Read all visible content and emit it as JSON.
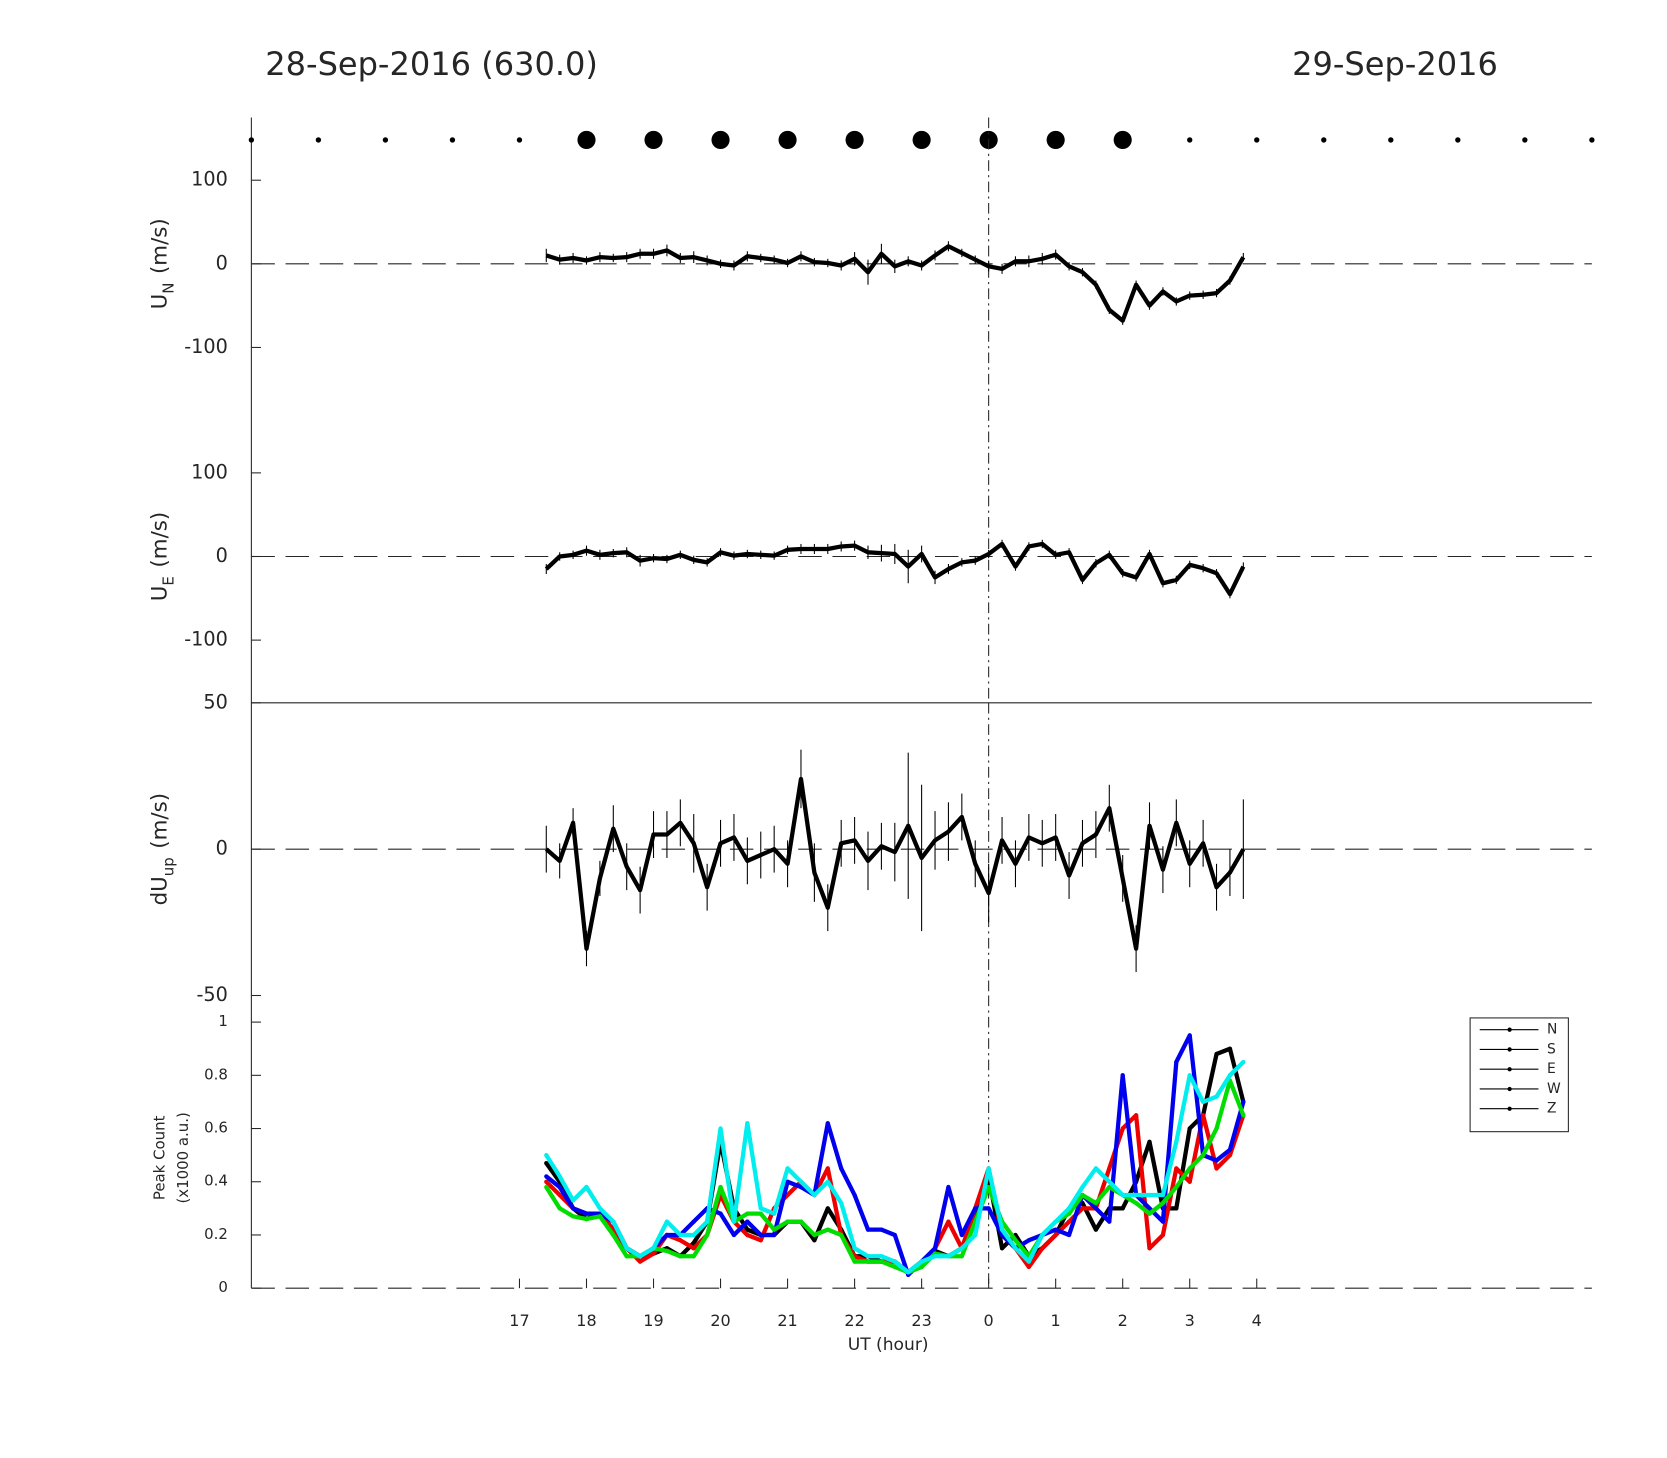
{
  "header": {
    "left": "28-Sep-2016 (630.0)",
    "right": "29-Sep-2016"
  },
  "chart_data": [
    {
      "type": "dots",
      "xlim": [
        13,
        33
      ],
      "color": "#000000",
      "x": [
        13,
        14,
        15,
        16,
        17,
        18,
        19,
        20,
        21,
        22,
        23,
        24,
        25,
        26,
        27,
        28,
        29,
        30,
        31,
        32,
        33
      ],
      "sizes": [
        2.5,
        2.5,
        2.5,
        2.5,
        2.5,
        8.5,
        8.5,
        8.5,
        8.5,
        8.5,
        8.5,
        8.5,
        8.5,
        8.5,
        2.5,
        2.5,
        2.5,
        2.5,
        2.5,
        2.5,
        2.5
      ]
    },
    {
      "type": "line",
      "xlim": [
        13,
        33
      ],
      "ylim": [
        -175,
        175
      ],
      "yticks": [
        -100,
        0,
        100
      ],
      "hline": 0,
      "vline": 24,
      "ylabel": {
        "text": "U",
        "sub": "N",
        "unit": "(m/s)"
      },
      "color": "#000000",
      "x": [
        17.4,
        17.6,
        17.8,
        18,
        18.2,
        18.4,
        18.6,
        18.8,
        19,
        19.2,
        19.4,
        19.6,
        19.8,
        20,
        20.2,
        20.4,
        20.6,
        20.8,
        21,
        21.2,
        21.4,
        21.6,
        21.8,
        22,
        22.2,
        22.4,
        22.6,
        22.8,
        23,
        23.2,
        23.4,
        23.6,
        23.8,
        24,
        24.2,
        24.4,
        24.6,
        24.8,
        25,
        25.2,
        25.4,
        25.6,
        25.8,
        26,
        26.2,
        26.4,
        26.6,
        26.8,
        27,
        27.2,
        27.4,
        27.6,
        27.8
      ],
      "values": [
        10,
        5,
        7,
        4,
        8,
        7,
        8,
        12,
        12,
        16,
        7,
        8,
        4,
        0,
        -2,
        9,
        7,
        5,
        1,
        9,
        2,
        1,
        -2,
        6,
        -10,
        12,
        -3,
        3,
        -2,
        10,
        21,
        13,
        5,
        -3,
        -6,
        3,
        3,
        6,
        11,
        -3,
        -10,
        -25,
        -55,
        -68,
        -25,
        -50,
        -33,
        -45,
        -38,
        -37,
        -35,
        -20,
        8
      ],
      "errors": [
        8,
        6,
        6,
        5,
        6,
        5,
        6,
        6,
        6,
        7,
        6,
        7,
        6,
        5,
        6,
        6,
        5,
        5,
        5,
        6,
        5,
        5,
        6,
        8,
        15,
        12,
        8,
        6,
        6,
        6,
        6,
        5,
        5,
        6,
        6,
        6,
        7,
        7,
        6,
        5,
        5,
        5,
        5,
        5,
        5,
        5,
        5,
        5,
        5,
        5,
        5,
        5,
        5
      ]
    },
    {
      "type": "line",
      "xlim": [
        13,
        33
      ],
      "ylim": [
        -175,
        175
      ],
      "yticks": [
        -100,
        0,
        100
      ],
      "hline": 0,
      "vline": 24,
      "ylabel": {
        "text": "U",
        "sub": "E",
        "unit": "(m/s)"
      },
      "color": "#000000",
      "x": [
        17.4,
        17.6,
        17.8,
        18,
        18.2,
        18.4,
        18.6,
        18.8,
        19,
        19.2,
        19.4,
        19.6,
        19.8,
        20,
        20.2,
        20.4,
        20.6,
        20.8,
        21,
        21.2,
        21.4,
        21.6,
        21.8,
        22,
        22.2,
        22.4,
        22.6,
        22.8,
        23,
        23.2,
        23.4,
        23.6,
        23.8,
        24,
        24.2,
        24.4,
        24.6,
        24.8,
        25,
        25.2,
        25.4,
        25.6,
        25.8,
        26,
        26.2,
        26.4,
        26.6,
        26.8,
        27,
        27.2,
        27.4,
        27.6,
        27.8
      ],
      "values": [
        -15,
        0,
        2,
        7,
        2,
        4,
        5,
        -5,
        -2,
        -3,
        2,
        -4,
        -7,
        5,
        1,
        3,
        2,
        1,
        8,
        9,
        9,
        9,
        12,
        13,
        5,
        4,
        3,
        -12,
        3,
        -25,
        -15,
        -7,
        -5,
        3,
        15,
        -12,
        12,
        15,
        2,
        5,
        -28,
        -8,
        2,
        -20,
        -25,
        3,
        -32,
        -28,
        -10,
        -14,
        -20,
        -45,
        -12
      ],
      "errors": [
        6,
        5,
        5,
        6,
        6,
        5,
        6,
        7,
        5,
        5,
        5,
        5,
        5,
        5,
        5,
        5,
        5,
        5,
        5,
        6,
        6,
        6,
        6,
        6,
        8,
        10,
        12,
        20,
        10,
        8,
        6,
        5,
        5,
        5,
        5,
        5,
        5,
        5,
        5,
        5,
        5,
        5,
        5,
        5,
        5,
        5,
        5,
        5,
        5,
        5,
        5,
        5,
        5
      ]
    },
    {
      "type": "line",
      "xlim": [
        13,
        33
      ],
      "ylim": [
        -50,
        50
      ],
      "yticks": [
        -50,
        0,
        50
      ],
      "hline": 0,
      "vline": 24,
      "ylabel": {
        "text": "dU",
        "sub": "up",
        "unit": "(m/s)"
      },
      "color": "#000000",
      "x": [
        17.4,
        17.6,
        17.8,
        18,
        18.2,
        18.4,
        18.6,
        18.8,
        19,
        19.2,
        19.4,
        19.6,
        19.8,
        20,
        20.2,
        20.4,
        20.6,
        20.8,
        21,
        21.2,
        21.4,
        21.6,
        21.8,
        22,
        22.2,
        22.4,
        22.6,
        22.8,
        23,
        23.2,
        23.4,
        23.6,
        23.8,
        24,
        24.2,
        24.4,
        24.6,
        24.8,
        25,
        25.2,
        25.4,
        25.6,
        25.8,
        26,
        26.2,
        26.4,
        26.6,
        26.8,
        27,
        27.2,
        27.4,
        27.6,
        27.8
      ],
      "values": [
        0,
        -4,
        9,
        -34,
        -10,
        7,
        -6,
        -14,
        5,
        5,
        9,
        2,
        -13,
        2,
        4,
        -4,
        -2,
        0,
        -5,
        24,
        -8,
        -20,
        2,
        3,
        -4,
        1,
        -1,
        8,
        -3,
        3,
        6,
        11,
        -5,
        -15,
        3,
        -5,
        4,
        2,
        4,
        -9,
        2,
        5,
        14,
        -10,
        -34,
        8,
        -7,
        9,
        -5,
        2,
        -13,
        -8,
        0
      ],
      "errors": [
        8,
        6,
        5,
        6,
        6,
        8,
        8,
        8,
        8,
        8,
        8,
        10,
        8,
        8,
        8,
        8,
        8,
        8,
        8,
        10,
        10,
        8,
        8,
        8,
        10,
        8,
        10,
        25,
        25,
        10,
        10,
        8,
        8,
        10,
        8,
        8,
        8,
        8,
        8,
        8,
        8,
        8,
        8,
        8,
        8,
        8,
        8,
        8,
        8,
        8,
        8,
        8,
        17
      ]
    },
    {
      "type": "multiline",
      "xlim": [
        13,
        33
      ],
      "ylim": [
        0,
        1.1
      ],
      "yticks": [
        0,
        0.2,
        0.4,
        0.6,
        0.8,
        1
      ],
      "hline": 0,
      "vline": 24,
      "xlabel": "UT (hour)",
      "ylabel": [
        "Peak Count",
        "(x1000 a.u.)"
      ],
      "legend": "upper right",
      "legend_color": "#000000",
      "xticks": [
        17,
        18,
        19,
        20,
        21,
        22,
        23,
        {
          "value": 24,
          "label": "0"
        },
        {
          "value": 25,
          "label": "1"
        },
        {
          "value": 26,
          "label": "2"
        },
        {
          "value": 27,
          "label": "3"
        },
        {
          "value": 28,
          "label": "4"
        }
      ],
      "x": [
        17.4,
        17.6,
        17.8,
        18,
        18.2,
        18.4,
        18.6,
        18.8,
        19,
        19.2,
        19.4,
        19.6,
        19.8,
        20,
        20.2,
        20.4,
        20.6,
        20.8,
        21,
        21.2,
        21.4,
        21.6,
        21.8,
        22,
        22.2,
        22.4,
        22.6,
        22.8,
        23,
        23.2,
        23.4,
        23.6,
        23.8,
        24,
        24.2,
        24.4,
        24.6,
        24.8,
        25,
        25.2,
        25.4,
        25.6,
        25.8,
        26,
        26.2,
        26.4,
        26.6,
        26.8,
        27,
        27.2,
        27.4,
        27.6,
        27.8
      ],
      "series": [
        {
          "name": "N",
          "color": "#000000",
          "values": [
            0.47,
            0.4,
            0.3,
            0.26,
            0.28,
            0.22,
            0.15,
            0.12,
            0.13,
            0.15,
            0.12,
            0.17,
            0.25,
            0.55,
            0.3,
            0.22,
            0.2,
            0.2,
            0.25,
            0.25,
            0.18,
            0.3,
            0.22,
            0.12,
            0.12,
            0.1,
            0.1,
            0.06,
            0.1,
            0.14,
            0.12,
            0.15,
            0.25,
            0.42,
            0.15,
            0.2,
            0.12,
            0.15,
            0.2,
            0.3,
            0.32,
            0.22,
            0.3,
            0.3,
            0.4,
            0.55,
            0.3,
            0.3,
            0.6,
            0.65,
            0.88,
            0.9,
            0.7
          ]
        },
        {
          "name": "S",
          "color": "#ee0000",
          "values": [
            0.4,
            0.35,
            0.3,
            0.28,
            0.28,
            0.22,
            0.15,
            0.1,
            0.13,
            0.2,
            0.18,
            0.15,
            0.2,
            0.35,
            0.25,
            0.2,
            0.18,
            0.3,
            0.35,
            0.4,
            0.35,
            0.45,
            0.2,
            0.12,
            0.1,
            0.1,
            0.1,
            0.06,
            0.08,
            0.15,
            0.25,
            0.15,
            0.3,
            0.45,
            0.2,
            0.15,
            0.08,
            0.15,
            0.2,
            0.25,
            0.3,
            0.3,
            0.45,
            0.6,
            0.65,
            0.15,
            0.2,
            0.45,
            0.4,
            0.65,
            0.45,
            0.5,
            0.65
          ]
        },
        {
          "name": "E",
          "color": "#0000ee",
          "values": [
            0.42,
            0.38,
            0.3,
            0.28,
            0.28,
            0.25,
            0.15,
            0.12,
            0.15,
            0.2,
            0.2,
            0.25,
            0.3,
            0.28,
            0.2,
            0.25,
            0.2,
            0.2,
            0.4,
            0.38,
            0.35,
            0.62,
            0.45,
            0.35,
            0.22,
            0.22,
            0.2,
            0.05,
            0.1,
            0.15,
            0.38,
            0.2,
            0.3,
            0.3,
            0.2,
            0.15,
            0.18,
            0.2,
            0.22,
            0.2,
            0.35,
            0.3,
            0.25,
            0.8,
            0.35,
            0.3,
            0.25,
            0.85,
            0.95,
            0.5,
            0.48,
            0.52,
            0.7
          ]
        },
        {
          "name": "W",
          "color": "#00dd00",
          "values": [
            0.38,
            0.3,
            0.27,
            0.26,
            0.27,
            0.2,
            0.12,
            0.12,
            0.15,
            0.14,
            0.12,
            0.12,
            0.2,
            0.38,
            0.25,
            0.28,
            0.28,
            0.22,
            0.25,
            0.25,
            0.2,
            0.22,
            0.2,
            0.1,
            0.1,
            0.1,
            0.08,
            0.06,
            0.08,
            0.13,
            0.12,
            0.12,
            0.25,
            0.38,
            0.25,
            0.18,
            0.12,
            0.2,
            0.25,
            0.28,
            0.35,
            0.32,
            0.38,
            0.35,
            0.32,
            0.28,
            0.32,
            0.38,
            0.45,
            0.5,
            0.6,
            0.78,
            0.65
          ]
        },
        {
          "name": "Z",
          "color": "#00eeee",
          "values": [
            0.5,
            0.42,
            0.33,
            0.38,
            0.3,
            0.25,
            0.15,
            0.12,
            0.15,
            0.25,
            0.2,
            0.2,
            0.25,
            0.6,
            0.25,
            0.62,
            0.3,
            0.28,
            0.45,
            0.4,
            0.35,
            0.4,
            0.32,
            0.15,
            0.12,
            0.12,
            0.1,
            0.06,
            0.1,
            0.12,
            0.12,
            0.15,
            0.2,
            0.45,
            0.22,
            0.15,
            0.1,
            0.2,
            0.25,
            0.3,
            0.38,
            0.45,
            0.4,
            0.35,
            0.35,
            0.35,
            0.35,
            0.55,
            0.8,
            0.7,
            0.72,
            0.8,
            0.85
          ]
        }
      ]
    }
  ]
}
